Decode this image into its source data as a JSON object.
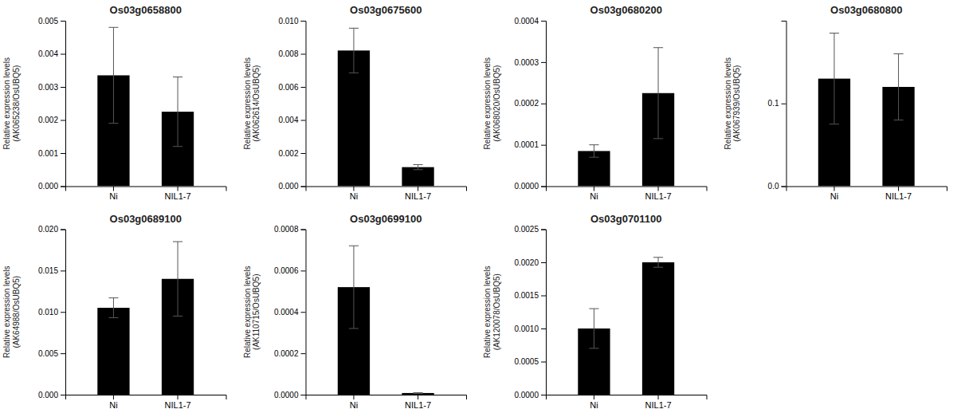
{
  "chart_data": [
    {
      "type": "bar",
      "title": "Os03g0658800",
      "ylabel": "Relative expression levels\n(AK065238/OsUBQ5)",
      "categories": [
        "Ni",
        "NIL1-7"
      ],
      "values": [
        0.00335,
        0.00225
      ],
      "errors": [
        0.00145,
        0.00105
      ],
      "color": "#000000",
      "ylim": [
        0,
        0.005
      ],
      "yticks": [
        {
          "value": 0,
          "label": "0.000"
        },
        0.001,
        0.002,
        0.003,
        0.004,
        0.005
      ]
    },
    {
      "type": "bar",
      "title": "Os03g0675600",
      "ylabel": "Relative expression levels\n(AK062614/OsUBQ5)",
      "categories": [
        "Ni",
        "NIL1-7"
      ],
      "values": [
        0.0082,
        0.00115
      ],
      "errors": [
        0.00135,
        0.00015
      ],
      "color": "#000000",
      "ylim": [
        0,
        0.01
      ],
      "yticks": [
        {
          "value": 0,
          "label": "0.000"
        },
        0.002,
        0.004,
        0.006,
        0.008,
        {
          "value": 0.01,
          "label": "0.010"
        }
      ]
    },
    {
      "type": "bar",
      "title": "Os03g0680200",
      "ylabel": "Relative expression levels\n(AK068020/OsUBQ5)",
      "categories": [
        "Ni",
        "NIL1-7"
      ],
      "values": [
        8.5e-05,
        0.000225
      ],
      "errors": [
        1.5e-05,
        0.00011
      ],
      "color": "#000000",
      "ylim": [
        0,
        0.0004
      ],
      "yticks": [
        {
          "value": 0,
          "label": "0.0000"
        },
        0.0001,
        0.0002,
        0.0003,
        0.0004
      ]
    },
    {
      "type": "bar",
      "title": "Os03g0680800",
      "ylabel": "Relative expression levels\n(AK067939/OsUBQ5)",
      "categories": [
        "Ni",
        "NIL1-7"
      ],
      "values": [
        0.13,
        0.12
      ],
      "errors": [
        0.055,
        0.04
      ],
      "color": "#000000",
      "ylim": [
        0,
        0.2
      ],
      "yticks": [
        {
          "value": 0,
          "label": "0.0"
        },
        0.1
      ]
    },
    {
      "type": "bar",
      "title": "Os03g0689100",
      "ylabel": "Relative expression levels\n(AK64988/OsUBQ5)",
      "categories": [
        "Ni",
        "NIL1-7"
      ],
      "values": [
        0.0105,
        0.014
      ],
      "errors": [
        0.0012,
        0.0045
      ],
      "color": "#000000",
      "ylim": [
        0,
        0.02
      ],
      "yticks": [
        {
          "value": 0,
          "label": "0.000"
        },
        0.005,
        {
          "value": 0.01,
          "label": "0.010"
        },
        0.015,
        {
          "value": 0.02,
          "label": "0.020"
        }
      ]
    },
    {
      "type": "bar",
      "title": "Os03g0699100",
      "ylabel": "Relative expression levels\n(AK110715/OsUBQ5)",
      "categories": [
        "Ni",
        "NIL1-7"
      ],
      "values": [
        0.00052,
        8e-06
      ],
      "errors": [
        0.0002,
        2e-06
      ],
      "color": "#000000",
      "ylim": [
        0,
        0.0008
      ],
      "yticks": [
        {
          "value": 0,
          "label": "0.0000"
        },
        0.0002,
        0.0004,
        0.0006,
        0.0008
      ]
    },
    {
      "type": "bar",
      "title": "Os03g0701100",
      "ylabel": "Relative expression levels\n(AK120078/OsUBQ5)",
      "categories": [
        "Ni",
        "NIL1-7"
      ],
      "values": [
        0.001,
        0.002
      ],
      "errors": [
        0.0003,
        7.5e-05
      ],
      "color": "#000000",
      "ylim": [
        0,
        0.0025
      ],
      "yticks": [
        {
          "value": 0,
          "label": "0.0000"
        },
        0.0005,
        {
          "value": 0.001,
          "label": "0.0010"
        },
        0.0015,
        {
          "value": 0.002,
          "label": "0.0020"
        },
        0.0025
      ]
    }
  ]
}
